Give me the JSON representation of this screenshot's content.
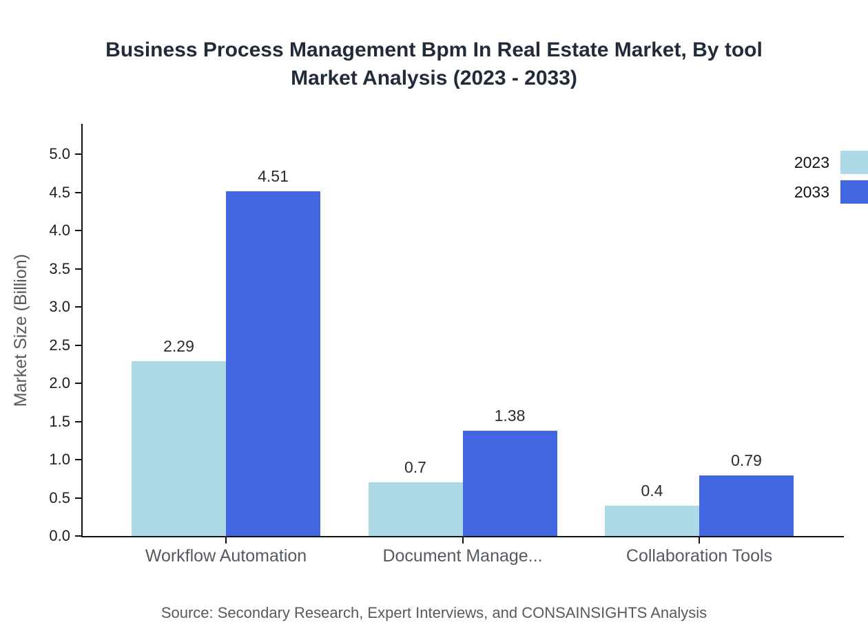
{
  "title": {
    "line1": "Business Process Management Bpm In Real Estate Market, By tool",
    "line2": "Market Analysis (2023 - 2033)"
  },
  "chart_data": {
    "type": "bar",
    "categories": [
      "Workflow Automation",
      "Document Manage...",
      "Collaboration Tools"
    ],
    "series": [
      {
        "name": "2023",
        "color": "#ADD8E6",
        "values": [
          2.29,
          0.7,
          0.4
        ]
      },
      {
        "name": "2033",
        "color": "#4266E0",
        "values": [
          4.51,
          1.38,
          0.79
        ]
      }
    ],
    "title": "Business Process Management Bpm In Real Estate Market, By tool Market Analysis (2023 - 2033)",
    "xlabel": "",
    "ylabel": "Market Size (Billion)",
    "ylim": [
      0,
      5.0
    ],
    "yticks": [
      0.0,
      0.5,
      1.0,
      1.5,
      2.0,
      2.5,
      3.0,
      3.5,
      4.0,
      4.5,
      5.0
    ],
    "grid": false,
    "legend_position": "top-right"
  },
  "source": "Source: Secondary Research, Expert Interviews, and CONSAINSIGHTS Analysis"
}
